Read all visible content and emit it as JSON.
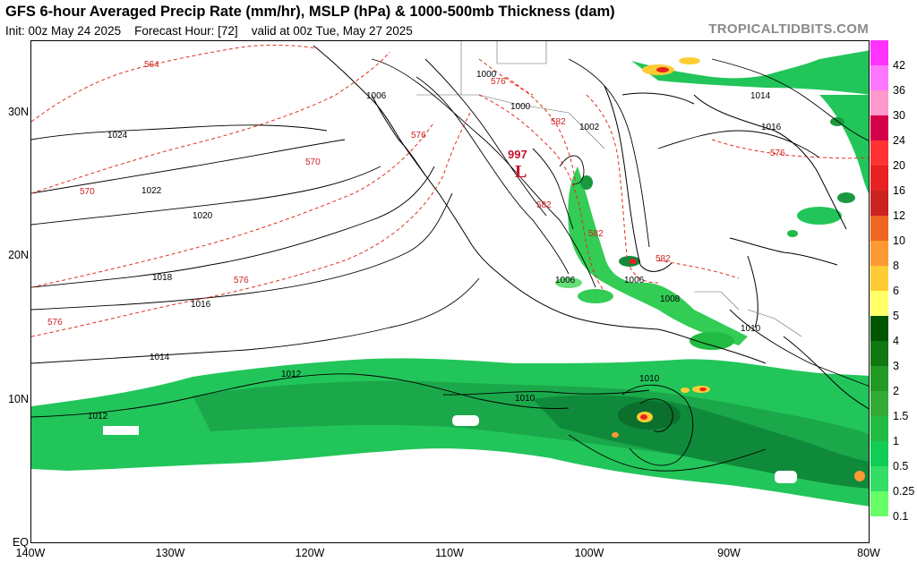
{
  "header": {
    "title": "GFS 6-hour Averaged Precip Rate (mm/hr), MSLP (hPa) & 1000-500mb Thickness (dam)",
    "init": "Init: 00z May 24 2025",
    "forecast_hour": "Forecast Hour: [72]",
    "valid": "valid at 00z Tue, May 27 2025",
    "brand": "TROPICALTIDBITS.COM"
  },
  "axes": {
    "lat_labels": [
      "30N",
      "20N",
      "10N",
      "EQ"
    ],
    "lon_labels": [
      "140W",
      "130W",
      "120W",
      "110W",
      "100W",
      "90W",
      "80W"
    ]
  },
  "colorbar": {
    "labels": [
      "42",
      "36",
      "30",
      "24",
      "20",
      "16",
      "12",
      "10",
      "8",
      "6",
      "5",
      "4",
      "3",
      "2",
      "1.5",
      "1",
      "0.5",
      "0.25",
      "0.1"
    ],
    "colors": [
      "#ff33ff",
      "#ff77ff",
      "#ff99cc",
      "#d4004a",
      "#ff3333",
      "#e62222",
      "#cc2222",
      "#ee6622",
      "#ff9933",
      "#ffcc33",
      "#ffff66",
      "#005500",
      "#117711",
      "#229922",
      "#33aa33",
      "#22bb44",
      "#11cc55",
      "#33dd66",
      "#66ff66"
    ]
  },
  "contours": {
    "isobar_labels": [
      "1024",
      "1022",
      "1020",
      "1018",
      "1016",
      "1014",
      "1012",
      "1012",
      "1010",
      "1010",
      "1010",
      "1006",
      "1006",
      "1006",
      "1000",
      "1000",
      "1002",
      "1014",
      "1016",
      "1008"
    ],
    "thickness_labels": [
      "564",
      "570",
      "570",
      "576",
      "576",
      "576",
      "576",
      "582",
      "582",
      "582",
      "582",
      "576"
    ],
    "low_label": "L",
    "low_value": "997"
  }
}
